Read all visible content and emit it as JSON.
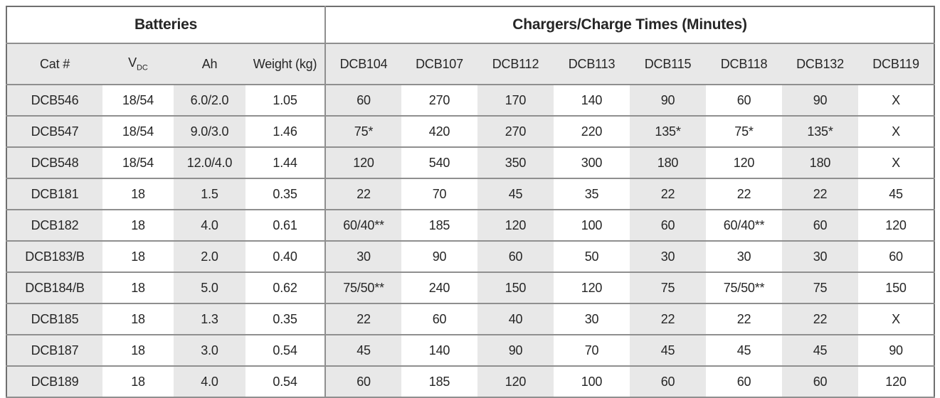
{
  "sections": {
    "batteries": "Batteries",
    "chargers": "Chargers/Charge Times (Minutes)"
  },
  "columns": {
    "cat": "Cat #",
    "vdc_main": "V",
    "vdc_sub": "DC",
    "ah": "Ah",
    "weight": "Weight (kg)",
    "chargers": [
      "DCB104",
      "DCB107",
      "DCB112",
      "DCB113",
      "DCB115",
      "DCB118",
      "DCB132",
      "DCB119"
    ]
  },
  "rows": [
    {
      "cat": "DCB546",
      "vdc": "18/54",
      "ah": "6.0/2.0",
      "weight": "1.05",
      "times": [
        "60",
        "270",
        "170",
        "140",
        "90",
        "60",
        "90",
        "X"
      ]
    },
    {
      "cat": "DCB547",
      "vdc": "18/54",
      "ah": "9.0/3.0",
      "weight": "1.46",
      "times": [
        "75*",
        "420",
        "270",
        "220",
        "135*",
        "75*",
        "135*",
        "X"
      ]
    },
    {
      "cat": "DCB548",
      "vdc": "18/54",
      "ah": "12.0/4.0",
      "weight": "1.44",
      "times": [
        "120",
        "540",
        "350",
        "300",
        "180",
        "120",
        "180",
        "X"
      ]
    },
    {
      "cat": "DCB181",
      "vdc": "18",
      "ah": "1.5",
      "weight": "0.35",
      "times": [
        "22",
        "70",
        "45",
        "35",
        "22",
        "22",
        "22",
        "45"
      ]
    },
    {
      "cat": "DCB182",
      "vdc": "18",
      "ah": "4.0",
      "weight": "0.61",
      "times": [
        "60/40**",
        "185",
        "120",
        "100",
        "60",
        "60/40**",
        "60",
        "120"
      ]
    },
    {
      "cat": "DCB183/B",
      "vdc": "18",
      "ah": "2.0",
      "weight": "0.40",
      "times": [
        "30",
        "90",
        "60",
        "50",
        "30",
        "30",
        "30",
        "60"
      ]
    },
    {
      "cat": "DCB184/B",
      "vdc": "18",
      "ah": "5.0",
      "weight": "0.62",
      "times": [
        "75/50**",
        "240",
        "150",
        "120",
        "75",
        "75/50**",
        "75",
        "150"
      ]
    },
    {
      "cat": "DCB185",
      "vdc": "18",
      "ah": "1.3",
      "weight": "0.35",
      "times": [
        "22",
        "60",
        "40",
        "30",
        "22",
        "22",
        "22",
        "X"
      ]
    },
    {
      "cat": "DCB187",
      "vdc": "18",
      "ah": "3.0",
      "weight": "0.54",
      "times": [
        "45",
        "140",
        "90",
        "70",
        "45",
        "45",
        "45",
        "90"
      ]
    },
    {
      "cat": "DCB189",
      "vdc": "18",
      "ah": "4.0",
      "weight": "0.54",
      "times": [
        "60",
        "185",
        "120",
        "100",
        "60",
        "60",
        "60",
        "120"
      ]
    }
  ],
  "colors": {
    "shaded_column_bg": "#e8e8e8",
    "grid_line": "#8f8f8f",
    "outer_border": "#6f6f6f",
    "text": "#262626"
  }
}
